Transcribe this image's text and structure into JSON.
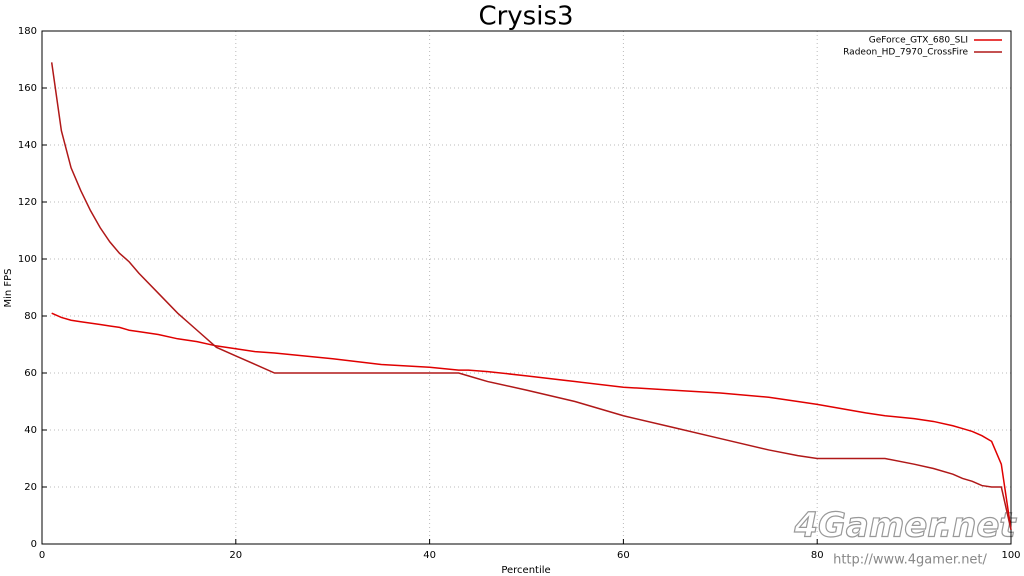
{
  "chart_data": {
    "type": "line",
    "title": "Crysis3",
    "x_label": "Percentile",
    "y_label": "Min FPS",
    "x": [
      1,
      2,
      3,
      4,
      5,
      6,
      7,
      8,
      9,
      10,
      12,
      14,
      16,
      18,
      20,
      22,
      24,
      30,
      35,
      40,
      43,
      44,
      46,
      50,
      55,
      60,
      65,
      70,
      75,
      78,
      80,
      85,
      87,
      90,
      92,
      94,
      95,
      96,
      97,
      98,
      99,
      100
    ],
    "series": [
      {
        "name": "GeForce_GTX_680_SLI",
        "color": "#e00000",
        "values": [
          81,
          79.5,
          78.5,
          78,
          77.5,
          77,
          76.5,
          76,
          75,
          74.5,
          73.5,
          72,
          71,
          69.5,
          68.5,
          67.5,
          67,
          65,
          63,
          62,
          61,
          61,
          60.5,
          59,
          57,
          55,
          54,
          53,
          51.5,
          50,
          49,
          46,
          45,
          44,
          43,
          41.5,
          40.5,
          39.5,
          38,
          36,
          28,
          5
        ]
      },
      {
        "name": "Radeon_HD_7970_CrossFire",
        "color": "#b01818",
        "values": [
          169,
          145,
          132,
          124,
          117,
          111,
          106,
          102,
          99,
          95,
          88,
          81,
          75,
          69,
          66,
          63,
          60,
          60,
          60,
          60,
          60,
          59,
          57,
          54,
          50,
          45,
          41,
          37,
          33,
          31,
          30,
          30,
          30,
          28,
          26.5,
          24.5,
          23,
          22,
          20.5,
          20,
          20,
          5
        ]
      }
    ],
    "xlim": [
      0,
      100
    ],
    "xticks": [
      0,
      20,
      40,
      60,
      80,
      100
    ],
    "ylim": [
      0,
      180
    ],
    "yticks": [
      0,
      20,
      40,
      60,
      80,
      100,
      120,
      140,
      160,
      180
    ],
    "grid": true,
    "legend": "top-right",
    "watermark": {
      "logo": "4Gamer.net",
      "url": "http://www.4gamer.net/"
    }
  }
}
